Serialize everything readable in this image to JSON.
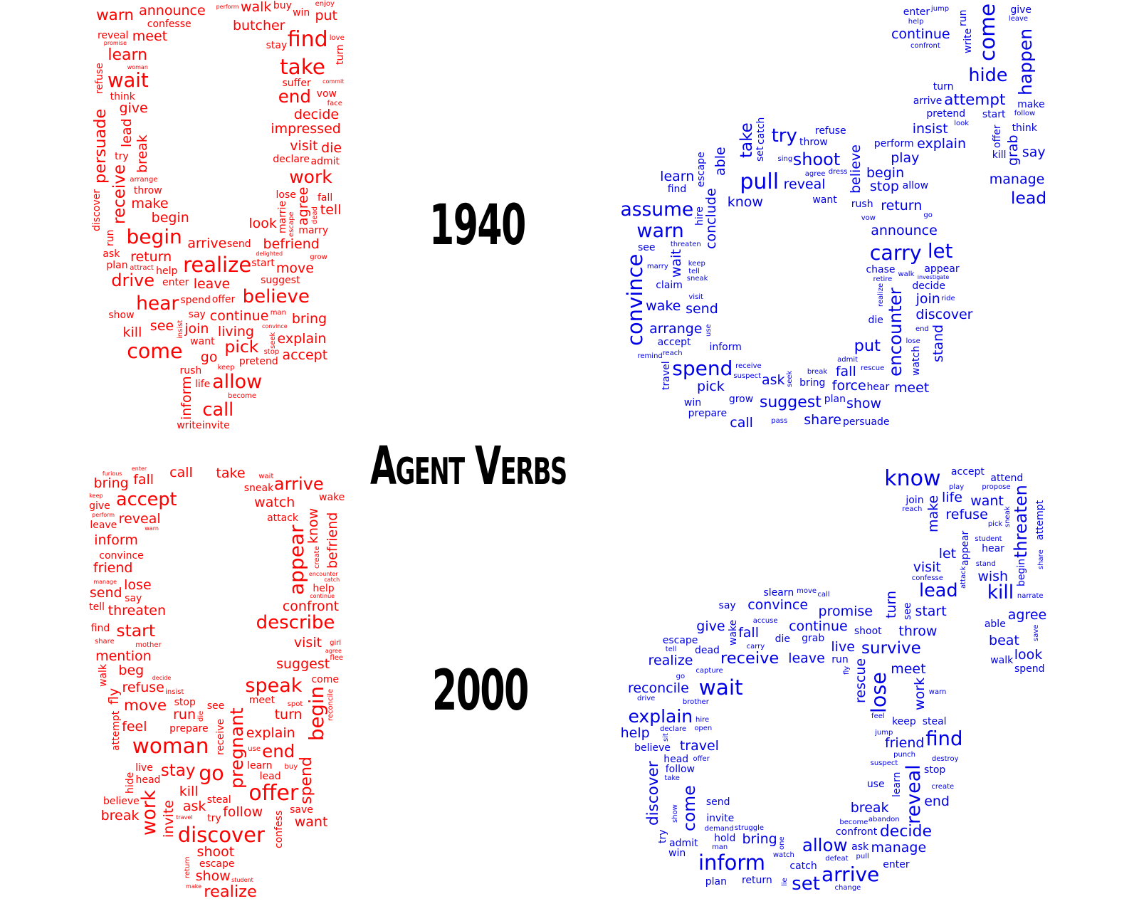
{
  "title": "Agent Verbs",
  "year_top": "1940",
  "year_bottom": "2000",
  "colors": {
    "female": "#ff0000",
    "male": "#0000e6"
  },
  "clouds": {
    "female_1940": [
      "find",
      "take",
      "realize",
      "come",
      "begin",
      "wait",
      "allow",
      "hear",
      "believe",
      "call",
      "work",
      "end",
      "drive",
      "pick",
      "receive",
      "persuade",
      "learn",
      "warn",
      "agree",
      "move",
      "accept",
      "living",
      "walk",
      "die",
      "lead",
      "befriend",
      "begin",
      "make",
      "look",
      "decide",
      "meet",
      "see",
      "go",
      "bring",
      "give",
      "impressed",
      "butcher",
      "announce",
      "inform",
      "visit",
      "arrive",
      "continue",
      "join",
      "tell",
      "leave",
      "return",
      "kill",
      "explain",
      "break",
      "put",
      "marrie",
      "discover",
      "plan",
      "reveal",
      "pretend",
      "buy",
      "admit",
      "throw",
      "fall",
      "spend",
      "vow",
      "marry",
      "suggest",
      "run",
      "confesse",
      "enter",
      "refuse",
      "declare",
      "think",
      "want",
      "lose",
      "rush",
      "convince",
      "send",
      "invite",
      "turn",
      "say",
      "stay",
      "show",
      "suffer",
      "try",
      "ask",
      "win",
      "start",
      "life",
      "write",
      "offer",
      "perform",
      "promise",
      "help",
      "arrange",
      "love",
      "seek",
      "escape",
      "become",
      "enjoy",
      "insist",
      "delighted",
      "grow",
      "keep",
      "commit",
      "dead",
      "man",
      "woman",
      "stop",
      "face",
      "attract"
    ],
    "male_1940": [
      "pull",
      "come",
      "convince",
      "carry",
      "spend",
      "let",
      "warn",
      "assume",
      "try",
      "hide",
      "happen",
      "encounter",
      "shoot",
      "lead",
      "take",
      "put",
      "suggest",
      "attempt",
      "arrange",
      "stand",
      "return",
      "believe",
      "manage",
      "ask",
      "show",
      "able",
      "call",
      "explain",
      "announce",
      "stop",
      "say",
      "learn",
      "continue",
      "reveal",
      "play",
      "pick",
      "grab",
      "wake",
      "share",
      "begin",
      "insist",
      "discover",
      "wait",
      "meet",
      "send",
      "conclude",
      "force",
      "know",
      "fall",
      "join",
      "arrive",
      "chase",
      "decide",
      "watch",
      "hire",
      "catch",
      "travel",
      "set",
      "accept",
      "bring",
      "throw",
      "claim",
      "refuse",
      "offer",
      "write",
      "allow",
      "inform",
      "give",
      "perform",
      "run",
      "die",
      "prepare",
      "hear",
      "grow",
      "want",
      "turn",
      "win",
      "rush",
      "escape",
      "appear",
      "make",
      "start",
      "enter",
      "see",
      "pretend",
      "think",
      "kill",
      "find",
      "persuade",
      "plan",
      "confront",
      "follow",
      "break",
      "pass",
      "vow",
      "agree",
      "help",
      "jump",
      "realize",
      "keep",
      "sneak",
      "walk",
      "tell",
      "marry",
      "ride",
      "go",
      "suspect",
      "leave",
      "look",
      "admit",
      "receive",
      "use",
      "lose",
      "seek",
      "rescue",
      "end",
      "reach",
      "visit",
      "sing",
      "remind",
      "threaten",
      "dress",
      "investigate",
      "retire"
    ],
    "female_2000": [
      "offer",
      "woman",
      "discover",
      "go",
      "appear",
      "begin",
      "speak",
      "work",
      "describe",
      "accept",
      "pregnant",
      "end",
      "arrive",
      "start",
      "stay",
      "realize",
      "spend",
      "move",
      "feel",
      "mention",
      "fly",
      "beg",
      "shoot",
      "visit",
      "call",
      "suggest",
      "ask",
      "kill",
      "fall",
      "want",
      "friend",
      "run",
      "know",
      "send",
      "show",
      "follow",
      "explain",
      "inform",
      "lose",
      "watch",
      "threaten",
      "turn",
      "break",
      "befriend",
      "refuse",
      "bring",
      "invite",
      "reveal",
      "take",
      "confront",
      "steal",
      "meet",
      "leave",
      "see",
      "convince",
      "hide",
      "lead",
      "wake",
      "try",
      "receive",
      "prepare",
      "escape",
      "help",
      "attack",
      "encounter",
      "give",
      "sneak",
      "come",
      "attempt",
      "confess",
      "live",
      "believe",
      "stop",
      "keep",
      "save",
      "walk",
      "perform",
      "find",
      "travel",
      "tell",
      "warn",
      "head",
      "decide",
      "make",
      "learn",
      "say",
      "continue",
      "enter",
      "manage",
      "agree",
      "return",
      "use",
      "die",
      "catch",
      "create",
      "reconcile",
      "share",
      "furious",
      "student",
      "buy",
      "flee",
      "wait",
      "girl",
      "insist",
      "mother",
      "spot"
    ],
    "male_2000": [
      "know",
      "wait",
      "inform",
      "lose",
      "arrive",
      "find",
      "reveal",
      "kill",
      "set",
      "lead",
      "explain",
      "allow",
      "threaten",
      "come",
      "survive",
      "receive",
      "decide",
      "discover",
      "convince",
      "travel",
      "refuse",
      "want",
      "continue",
      "start",
      "turn",
      "let",
      "manage",
      "reconcile",
      "wish",
      "friend",
      "break",
      "bring",
      "life",
      "live",
      "look",
      "leave",
      "help",
      "throw",
      "fall",
      "end",
      "rescue",
      "realize",
      "meet",
      "give",
      "make",
      "work",
      "promise",
      "visit",
      "beat",
      "agree",
      "return",
      "follow",
      "hold",
      "believe",
      "steal",
      "invite",
      "attend",
      "accept",
      "try",
      "keep",
      "appear",
      "join",
      "learn",
      "send",
      "spend",
      "confront",
      "die",
      "see",
      "slearn",
      "admit",
      "say",
      "dead",
      "escape",
      "stop",
      "wake",
      "use",
      "able",
      "plan",
      "catch",
      "ask",
      "attempt",
      "hear",
      "head",
      "shoot",
      "enter",
      "begin",
      "win",
      "walk",
      "grab",
      "run",
      "pull",
      "show",
      "jump",
      "warn",
      "drive",
      "offer",
      "tell",
      "go",
      "move",
      "fly",
      "save",
      "open",
      "take",
      "call",
      "stand",
      "play",
      "sneak",
      "demand",
      "create",
      "pick",
      "feel",
      "reach",
      "share",
      "destroy",
      "narrate",
      "watch",
      "declare",
      "capture",
      "sit",
      "struggle",
      "change",
      "hire",
      "attack",
      "punch",
      "defeat",
      "propose",
      "confesse",
      "one",
      "lie",
      "become",
      "suspect",
      "student",
      "abandon",
      "accuse",
      "man",
      "brother",
      "carry"
    ]
  }
}
